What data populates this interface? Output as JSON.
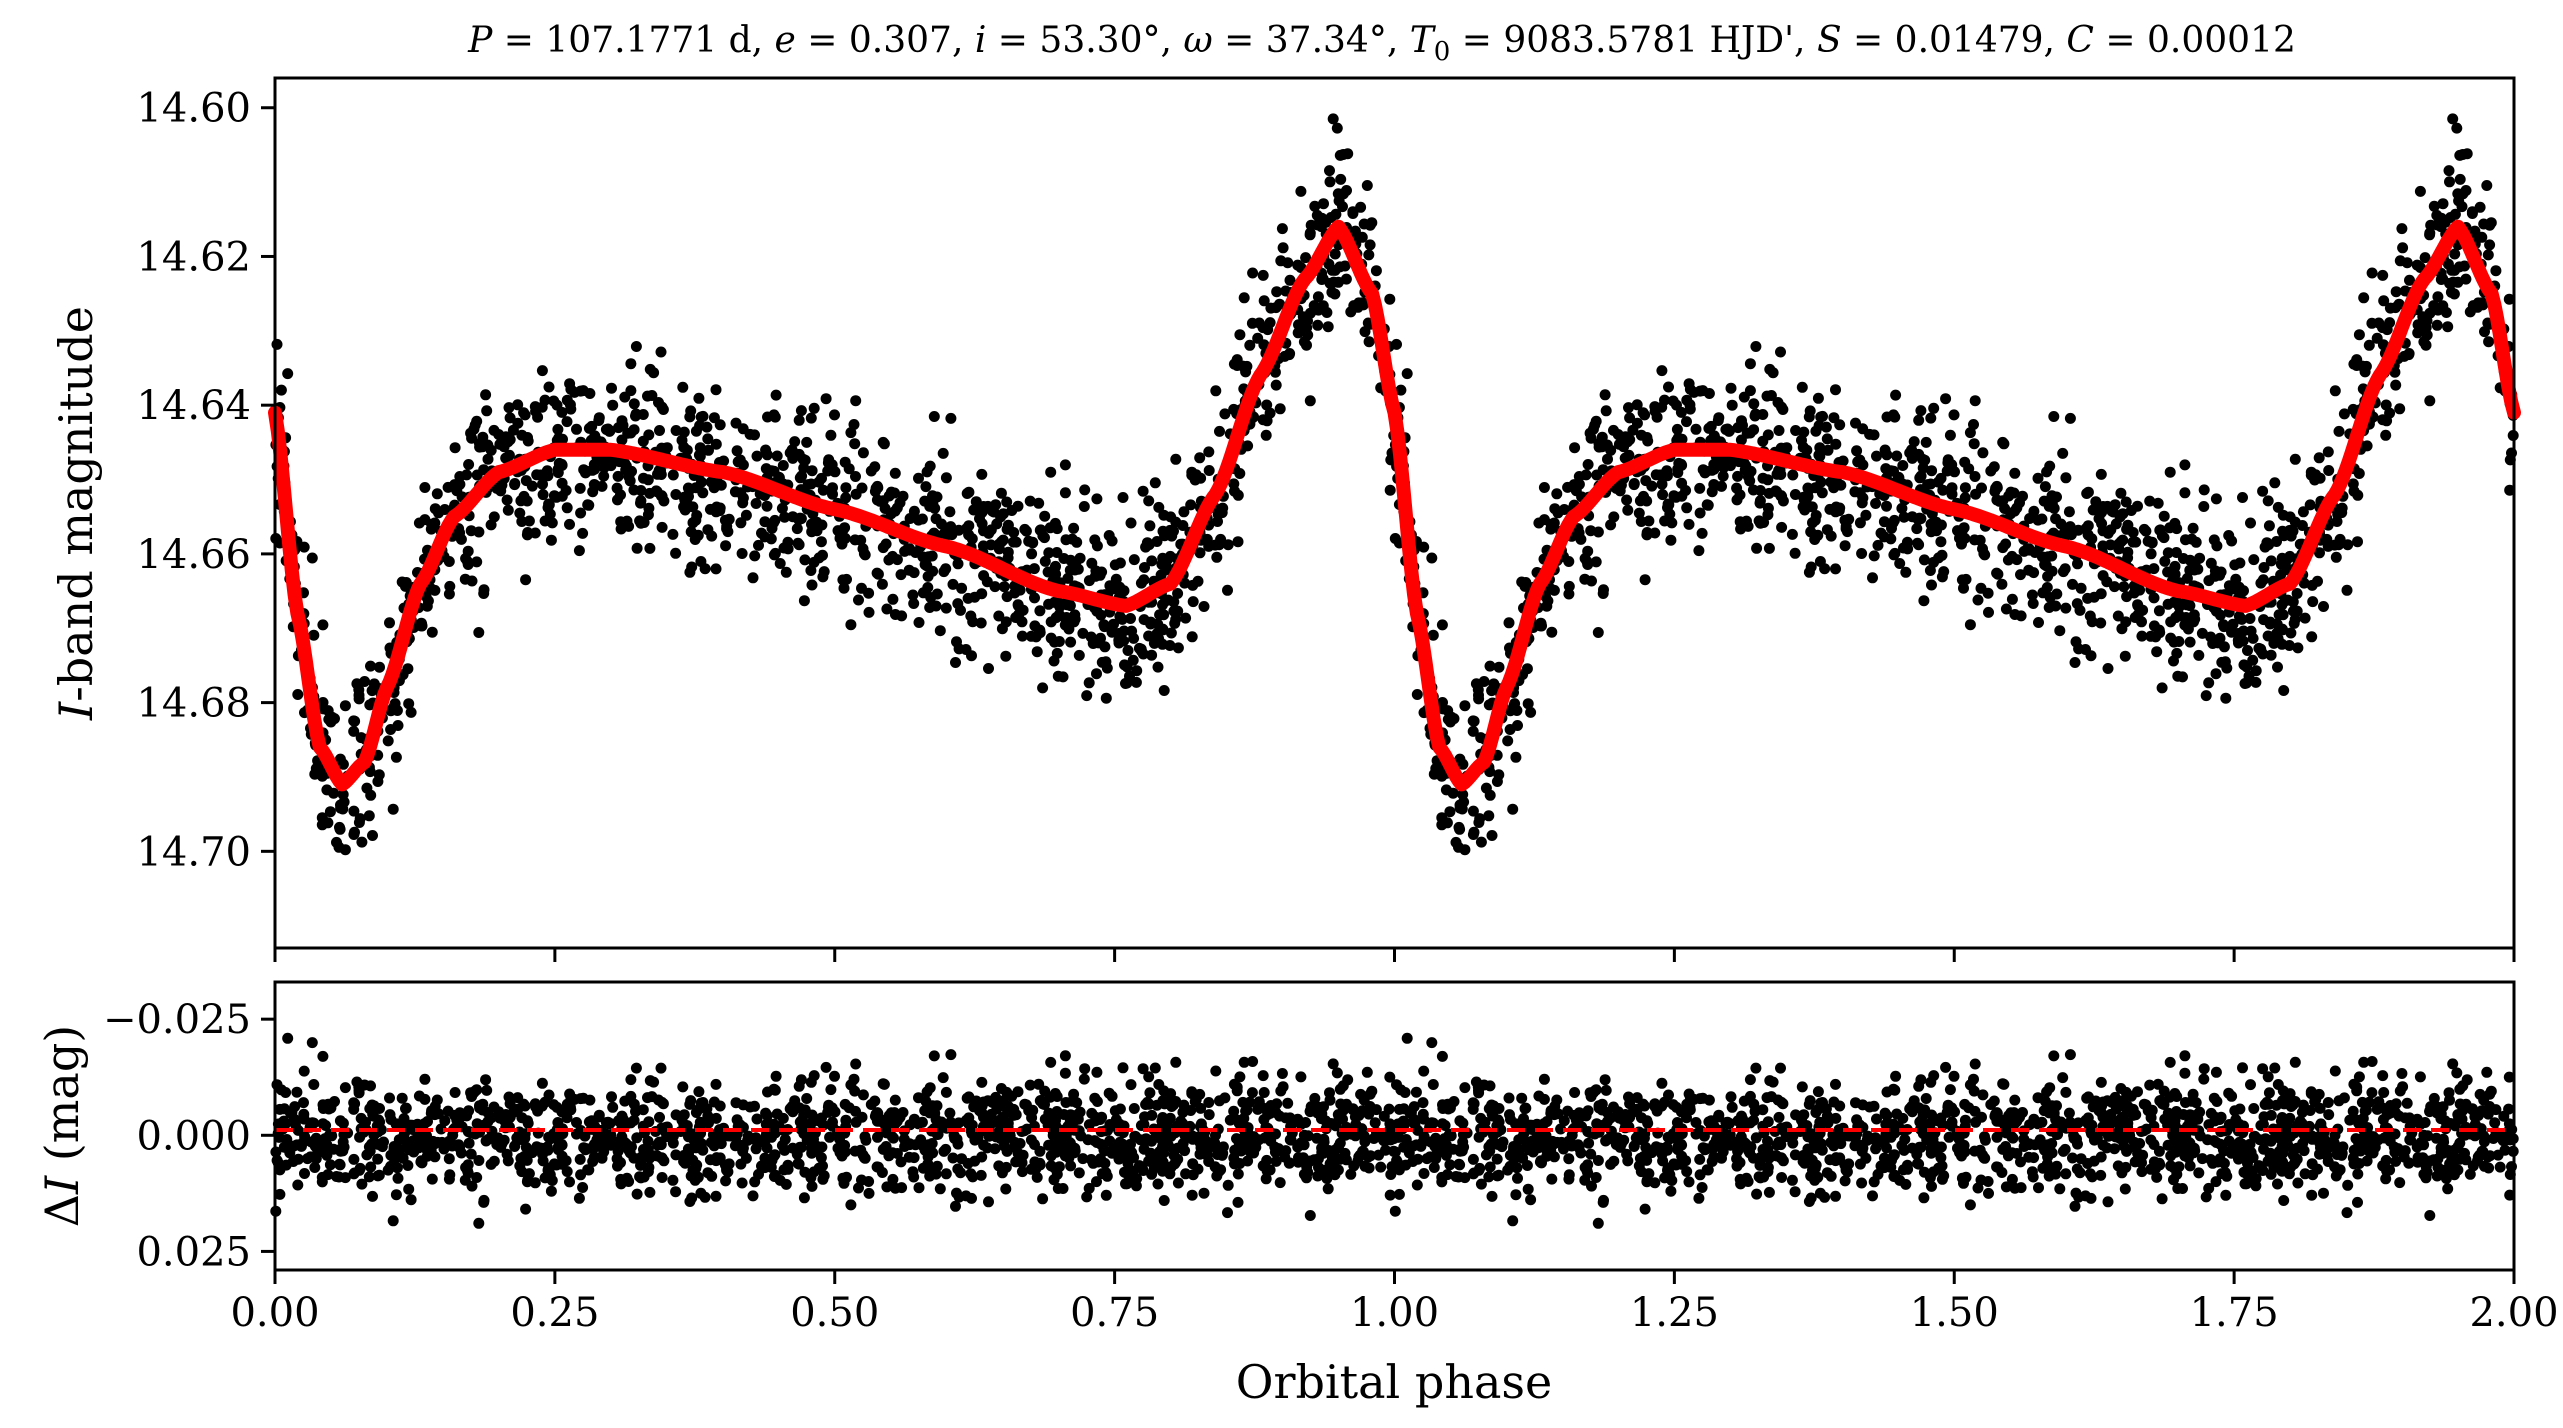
{
  "figure": {
    "title": "P = 107.1771 d, e = 0.307, i = 53.30°, ω = 37.34°, T0 = 9083.5781 HJD', S = 0.01479, C = 0.00012",
    "title_parts": {
      "P_sym": "P",
      "P_val": " = 107.1771 d, ",
      "e_sym": "e",
      "e_val": " = 0.307, ",
      "i_sym": "i",
      "i_val": " = 53.30°, ",
      "w_sym": "ω",
      "w_val": " = 37.34°, ",
      "T_sym": "T",
      "T_sub": "0",
      "T_val": " = 9083.5781 HJD', ",
      "S_sym": "S",
      "S_val": " = 0.01479, ",
      "C_sym": "C",
      "C_val": " = 0.00012"
    }
  },
  "chart_data": [
    {
      "type": "scatter",
      "panel": "top",
      "xlabel": "",
      "ylabel": "I-band magnitude",
      "ylabel_parts": {
        "italic": "I",
        "rest": "-band magnitude"
      },
      "xlim": [
        0.0,
        2.0
      ],
      "ylim": [
        14.713,
        14.596
      ],
      "y_inverted": true,
      "y_ticks": [
        14.6,
        14.62,
        14.64,
        14.66,
        14.68,
        14.7
      ],
      "y_tick_labels": [
        "14.60",
        "14.62",
        "14.64",
        "14.66",
        "14.68",
        "14.70"
      ],
      "grid": false,
      "series": [
        {
          "kind": "observations",
          "color": "#000000",
          "marker": "circle",
          "model_curve_phase_samples": [
            0.0,
            0.02,
            0.04,
            0.06,
            0.08,
            0.1,
            0.13,
            0.16,
            0.2,
            0.25,
            0.3,
            0.4,
            0.5,
            0.6,
            0.7,
            0.76,
            0.8,
            0.84,
            0.88,
            0.92,
            0.95,
            0.98,
            1.0
          ],
          "model_curve_magnitudes": [
            14.641,
            14.668,
            14.686,
            14.691,
            14.688,
            14.678,
            14.664,
            14.655,
            14.649,
            14.646,
            14.646,
            14.649,
            14.654,
            14.659,
            14.665,
            14.667,
            14.664,
            14.652,
            14.636,
            14.623,
            14.616,
            14.625,
            14.641
          ],
          "scatter_sigma_mag": 0.006,
          "phase_span": [
            0.0,
            2.0
          ]
        },
        {
          "kind": "model",
          "color": "#ff0000",
          "line": "solid",
          "phase": [
            0.0,
            0.02,
            0.04,
            0.06,
            0.08,
            0.1,
            0.13,
            0.16,
            0.2,
            0.25,
            0.3,
            0.4,
            0.5,
            0.6,
            0.7,
            0.76,
            0.8,
            0.84,
            0.88,
            0.92,
            0.95,
            0.98,
            1.0
          ],
          "magnitude": [
            14.641,
            14.668,
            14.686,
            14.691,
            14.688,
            14.678,
            14.664,
            14.655,
            14.649,
            14.646,
            14.646,
            14.649,
            14.654,
            14.659,
            14.665,
            14.667,
            14.664,
            14.652,
            14.636,
            14.623,
            14.616,
            14.625,
            14.641
          ],
          "repeats_every": 1.0
        }
      ]
    },
    {
      "type": "scatter",
      "panel": "bottom",
      "xlabel": "Orbital phase",
      "ylabel": "ΔI (mag)",
      "ylabel_parts": {
        "delta": "Δ",
        "italic": "I",
        "rest": " (mag)"
      },
      "xlim": [
        0.0,
        2.0
      ],
      "ylim": [
        0.029,
        -0.033
      ],
      "y_inverted": true,
      "x_ticks": [
        0.0,
        0.25,
        0.5,
        0.75,
        1.0,
        1.25,
        1.5,
        1.75,
        2.0
      ],
      "x_tick_labels": [
        "0.00",
        "0.25",
        "0.50",
        "0.75",
        "1.00",
        "1.25",
        "1.50",
        "1.75",
        "2.00"
      ],
      "y_ticks": [
        -0.025,
        0.0,
        0.025
      ],
      "y_tick_labels": [
        "−0.025",
        "0.000",
        "0.025"
      ],
      "grid": false,
      "series": [
        {
          "kind": "residuals",
          "color": "#000000",
          "marker": "circle",
          "scatter_sigma_mag": 0.006,
          "phase_span": [
            0.0,
            2.0
          ]
        },
        {
          "kind": "zero-line",
          "color": "#ff0000",
          "line": "dashed",
          "y": 0.0
        }
      ]
    }
  ]
}
